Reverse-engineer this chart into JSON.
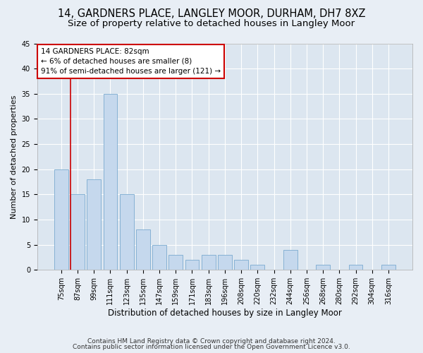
{
  "title1": "14, GARDNERS PLACE, LANGLEY MOOR, DURHAM, DH7 8XZ",
  "title2": "Size of property relative to detached houses in Langley Moor",
  "xlabel": "Distribution of detached houses by size in Langley Moor",
  "ylabel": "Number of detached properties",
  "categories": [
    "75sqm",
    "87sqm",
    "99sqm",
    "111sqm",
    "123sqm",
    "135sqm",
    "147sqm",
    "159sqm",
    "171sqm",
    "183sqm",
    "196sqm",
    "208sqm",
    "220sqm",
    "232sqm",
    "244sqm",
    "256sqm",
    "268sqm",
    "280sqm",
    "292sqm",
    "304sqm",
    "316sqm"
  ],
  "values": [
    20,
    15,
    18,
    35,
    15,
    8,
    5,
    3,
    2,
    3,
    3,
    2,
    1,
    0,
    4,
    0,
    1,
    0,
    1,
    0,
    1
  ],
  "bar_color": "#c5d8ed",
  "bar_edge_color": "#7aaacf",
  "annotation_text1": "14 GARDNERS PLACE: 82sqm",
  "annotation_text2": "← 6% of detached houses are smaller (8)",
  "annotation_text3": "91% of semi-detached houses are larger (121) →",
  "annotation_box_color": "#ffffff",
  "annotation_box_edge_color": "#cc0000",
  "vline_color": "#cc0000",
  "ylim": [
    0,
    45
  ],
  "yticks": [
    0,
    5,
    10,
    15,
    20,
    25,
    30,
    35,
    40,
    45
  ],
  "footnote1": "Contains HM Land Registry data © Crown copyright and database right 2024.",
  "footnote2": "Contains public sector information licensed under the Open Government Licence v3.0.",
  "bg_color": "#e8eef5",
  "plot_bg_color": "#dce6f0",
  "grid_color": "#ffffff",
  "title1_fontsize": 10.5,
  "title2_fontsize": 9.5,
  "xlabel_fontsize": 8.5,
  "ylabel_fontsize": 8,
  "tick_fontsize": 7,
  "annotation_fontsize": 7.5,
  "footnote_fontsize": 6.5
}
